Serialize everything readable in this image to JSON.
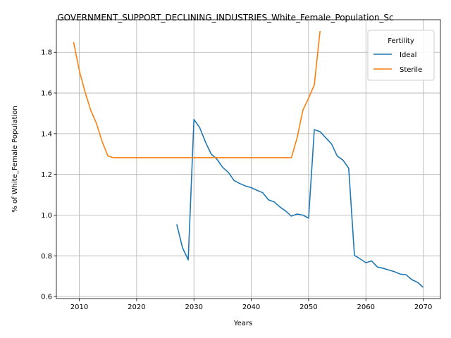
{
  "chart_data": {
    "type": "line",
    "title": "GOVERNMENT_SUPPORT_DECLINING_INDUSTRIES_White_Female_Population_Sc",
    "xlabel": "Years",
    "ylabel": "% of White_Female Population",
    "xlim": [
      2006,
      2073
    ],
    "ylim": [
      0.59,
      1.96
    ],
    "xticks": [
      2010,
      2020,
      2030,
      2040,
      2050,
      2060,
      2070
    ],
    "yticks": [
      0.6,
      0.8,
      1.0,
      1.2,
      1.4,
      1.6,
      1.8
    ],
    "grid": true,
    "legend": {
      "title": "Fertility",
      "position": "top-right"
    },
    "series": [
      {
        "name": "Ideal",
        "color": "#1f77b4",
        "x": [
          2027,
          2028,
          2029,
          2030,
          2031,
          2032,
          2033,
          2034,
          2035,
          2036,
          2037,
          2038,
          2039,
          2040,
          2041,
          2042,
          2043,
          2044,
          2045,
          2046,
          2047,
          2048,
          2049,
          2050,
          2051,
          2052,
          2053,
          2054,
          2055,
          2056,
          2057,
          2058,
          2059,
          2060,
          2061,
          2062,
          2063,
          2064,
          2065,
          2066,
          2067,
          2068,
          2069,
          2070
        ],
        "values": [
          0.955,
          0.84,
          0.78,
          1.47,
          1.43,
          1.36,
          1.3,
          1.275,
          1.235,
          1.21,
          1.17,
          1.155,
          1.143,
          1.135,
          1.122,
          1.11,
          1.075,
          1.065,
          1.04,
          1.02,
          0.995,
          1.005,
          1.0,
          0.985,
          1.42,
          1.41,
          1.38,
          1.35,
          1.29,
          1.27,
          1.23,
          0.802,
          0.785,
          0.766,
          0.775,
          0.745,
          0.739,
          0.73,
          0.722,
          0.71,
          0.707,
          0.683,
          0.67,
          0.645
        ]
      },
      {
        "name": "Sterile",
        "color": "#ff7f0e",
        "x": [
          2009,
          2010,
          2011,
          2012,
          2013,
          2014,
          2015,
          2016,
          2017,
          2018,
          2019,
          2020,
          2021,
          2022,
          2023,
          2024,
          2025,
          2026,
          2027,
          2028,
          2029,
          2030,
          2031,
          2032,
          2033,
          2034,
          2035,
          2036,
          2037,
          2038,
          2039,
          2040,
          2041,
          2042,
          2043,
          2044,
          2045,
          2046,
          2047,
          2048,
          2049,
          2050,
          2051,
          2052
        ],
        "values": [
          1.85,
          1.71,
          1.605,
          1.515,
          1.45,
          1.36,
          1.29,
          1.282,
          1.282,
          1.282,
          1.282,
          1.282,
          1.282,
          1.282,
          1.282,
          1.282,
          1.282,
          1.282,
          1.282,
          1.282,
          1.282,
          1.282,
          1.282,
          1.282,
          1.282,
          1.282,
          1.282,
          1.282,
          1.282,
          1.282,
          1.282,
          1.282,
          1.282,
          1.282,
          1.282,
          1.282,
          1.282,
          1.282,
          1.282,
          1.38,
          1.515,
          1.575,
          1.64,
          1.905
        ]
      }
    ]
  }
}
